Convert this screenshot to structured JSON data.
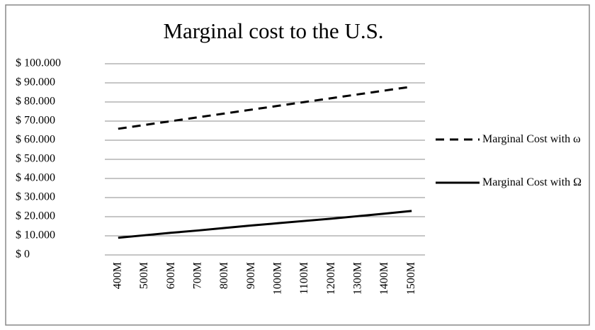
{
  "chart_data": {
    "type": "line",
    "title": "Marginal cost to the U.S.",
    "categories": [
      "400M",
      "500M",
      "600M",
      "700M",
      "800M",
      "900M",
      "1000M",
      "1100M",
      "1200M",
      "1300M",
      "1400M",
      "1500M"
    ],
    "series": [
      {
        "name": "Marginal Cost with ω",
        "color": "#000000",
        "dash": "dashed",
        "values": [
          66000,
          68000,
          70000,
          72000,
          74000,
          76000,
          78000,
          80000,
          82000,
          84000,
          86000,
          88000
        ]
      },
      {
        "name": "Marginal Cost with Ω",
        "color": "#000000",
        "dash": "solid",
        "values": [
          9000,
          10300,
          11600,
          12800,
          14100,
          15400,
          16600,
          17800,
          19000,
          20300,
          21600,
          23000
        ]
      }
    ],
    "ylim": [
      0,
      100000
    ],
    "yticks": [
      {
        "value": 0,
        "label": "$ 0"
      },
      {
        "value": 10000,
        "label": "$ 10.000"
      },
      {
        "value": 20000,
        "label": "$ 20.000"
      },
      {
        "value": 30000,
        "label": "$ 30.000"
      },
      {
        "value": 40000,
        "label": "$ 40.000"
      },
      {
        "value": 50000,
        "label": "$ 50.000"
      },
      {
        "value": 60000,
        "label": "$ 60.000"
      },
      {
        "value": 70000,
        "label": "$ 70.000"
      },
      {
        "value": 80000,
        "label": "$ 80.000"
      },
      {
        "value": 90000,
        "label": "$ 90.000"
      },
      {
        "value": 100000,
        "label": "$ 100.000"
      }
    ],
    "grid": true,
    "legend": "right"
  }
}
